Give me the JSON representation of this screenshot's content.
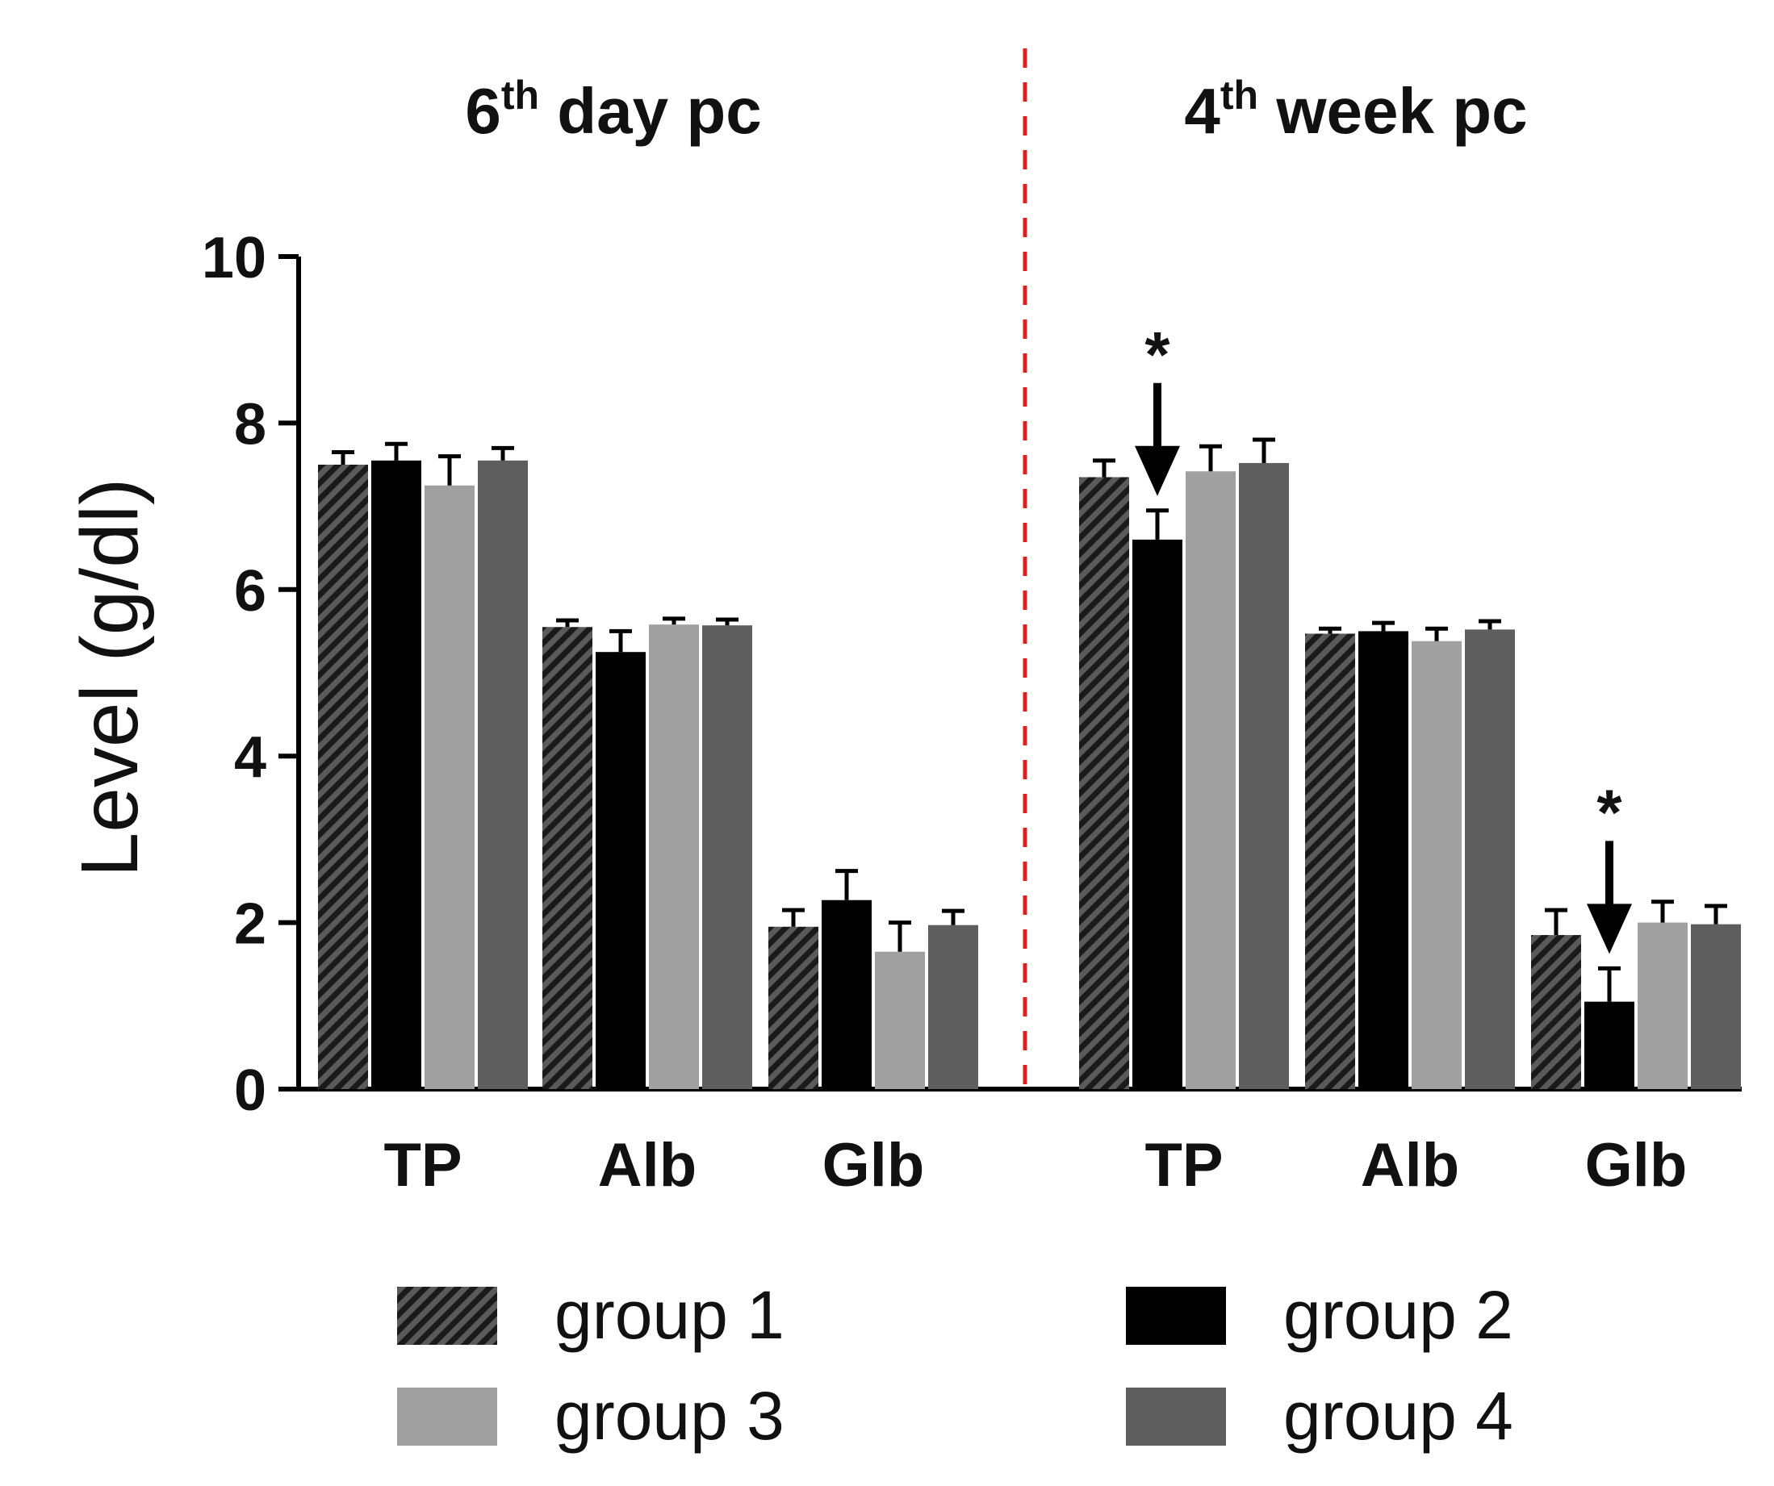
{
  "chart_data": {
    "type": "bar",
    "ylabel": "Level (g/dl)",
    "xlabel": "",
    "ylim": [
      0,
      10
    ],
    "yticks": [
      0,
      2,
      4,
      6,
      8,
      10
    ],
    "panels": [
      {
        "title_main": "6",
        "title_sup": "th",
        "title_rest": "day pc",
        "categories": [
          "TP",
          "Alb",
          "Glb"
        ],
        "series": [
          {
            "name": "group 1",
            "values": [
              7.5,
              5.55,
              1.95
            ],
            "errors": [
              0.15,
              0.08,
              0.2
            ]
          },
          {
            "name": "group 2",
            "values": [
              7.55,
              5.25,
              2.27
            ],
            "errors": [
              0.2,
              0.25,
              0.35
            ]
          },
          {
            "name": "group 3",
            "values": [
              7.25,
              5.58,
              1.65
            ],
            "errors": [
              0.35,
              0.07,
              0.35
            ]
          },
          {
            "name": "group 4",
            "values": [
              7.55,
              5.57,
              1.97
            ],
            "errors": [
              0.15,
              0.07,
              0.17
            ]
          }
        ],
        "annotations": []
      },
      {
        "title_main": "4",
        "title_sup": "th",
        "title_rest": "week pc",
        "categories": [
          "TP",
          "Alb",
          "Glb"
        ],
        "series": [
          {
            "name": "group 1",
            "values": [
              7.35,
              5.47,
              1.85
            ],
            "errors": [
              0.2,
              0.06,
              0.3
            ]
          },
          {
            "name": "group 2",
            "values": [
              6.6,
              5.5,
              1.05
            ],
            "errors": [
              0.35,
              0.1,
              0.4
            ]
          },
          {
            "name": "group 3",
            "values": [
              7.42,
              5.38,
              2.0
            ],
            "errors": [
              0.3,
              0.15,
              0.25
            ]
          },
          {
            "name": "group 4",
            "values": [
              7.52,
              5.52,
              1.98
            ],
            "errors": [
              0.28,
              0.1,
              0.22
            ]
          }
        ],
        "annotations": [
          {
            "category": "TP",
            "series": "group 2",
            "label": "*",
            "arrow": true
          },
          {
            "category": "Glb",
            "series": "group 2",
            "label": "*",
            "arrow": true
          }
        ]
      }
    ],
    "legend": [
      {
        "name": "group 1",
        "color": "#2e2e2e",
        "pattern": "hatch"
      },
      {
        "name": "group 2",
        "color": "#000000",
        "pattern": "solid"
      },
      {
        "name": "group 3",
        "color": "#a0a0a0",
        "pattern": "solid"
      },
      {
        "name": "group 4",
        "color": "#5e5e5e",
        "pattern": "solid"
      }
    ],
    "divider_color": "#e02020"
  }
}
